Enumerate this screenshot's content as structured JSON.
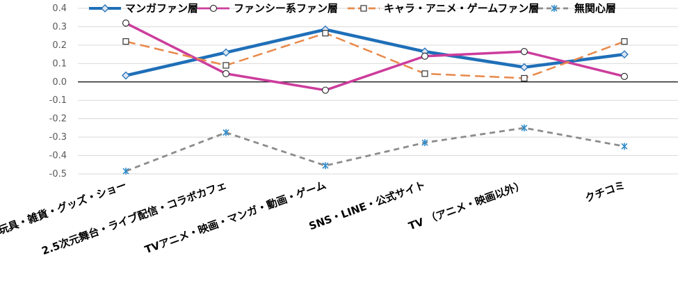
{
  "chart_data": {
    "type": "line",
    "categories": [
      "玩具・雑貨・グッズ・ショー",
      "2.5次元舞台・ライブ配信・コラボカフェ",
      "TVアニメ・映画・マンガ・動画・ゲーム",
      "SNS・LINE・公式サイト",
      "TV （アニメ・映画以外）",
      "クチコミ"
    ],
    "series": [
      {
        "name": "マンガファン層",
        "values": [
          0.035,
          0.16,
          0.285,
          0.165,
          0.08,
          0.15
        ],
        "color": "#1f6fb8",
        "marker": "diamond",
        "dash": "solid"
      },
      {
        "name": "ファンシー系ファン層",
        "values": [
          0.32,
          0.045,
          -0.045,
          0.14,
          0.165,
          0.03
        ],
        "color": "#cc3c9c",
        "marker": "circle",
        "dash": "solid"
      },
      {
        "name": "キャラ・アニメ・ゲームファン層",
        "values": [
          0.22,
          0.09,
          0.265,
          0.045,
          0.02,
          0.22
        ],
        "color": "#e8894a",
        "marker": "square",
        "dash": "long-dash"
      },
      {
        "name": "無関心層",
        "values": [
          -0.485,
          -0.275,
          -0.455,
          -0.33,
          -0.25,
          -0.35
        ],
        "color": "#8c8c8c",
        "marker": "asterisk",
        "dash": "dash",
        "marker_color": "#2e8bc9"
      }
    ],
    "yticks": [
      "0.4",
      "0.3",
      "0.2",
      "0.1",
      "0.0",
      "-0.1",
      "-0.2",
      "-0.3",
      "-0.4",
      "-0.5"
    ],
    "ylim": [
      -0.5,
      0.4
    ],
    "grid": true,
    "legend_position": "top"
  }
}
